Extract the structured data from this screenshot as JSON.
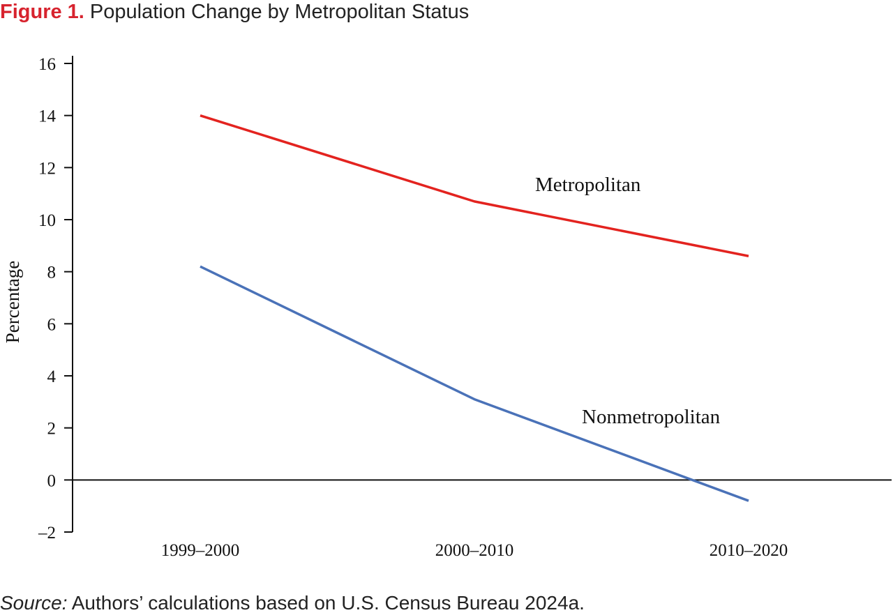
{
  "figure": {
    "label": "Figure 1.",
    "title": "Population Change by Metropolitan Status",
    "label_color": "#d7232e"
  },
  "source": {
    "label": "Source:",
    "text": " Authors’ calculations based on U.S. Census Bureau 2024a."
  },
  "chart_data": {
    "type": "line",
    "categories": [
      "1999–2000",
      "2000–2010",
      "2010–2020"
    ],
    "series": [
      {
        "name": "Metropolitan",
        "values": [
          14.0,
          10.7,
          8.6
        ],
        "color": "#e3231f"
      },
      {
        "name": "Nonmetropolitan",
        "values": [
          8.2,
          3.1,
          -0.8
        ],
        "color": "#4a72b8"
      }
    ],
    "ylabel": "Percentage",
    "xlabel": "",
    "ylim": [
      -2,
      16
    ],
    "yticks": [
      -2,
      0,
      2,
      4,
      6,
      8,
      10,
      12,
      14,
      16
    ],
    "ytick_labels": [
      "–2",
      "0",
      "2",
      "4",
      "6",
      "8",
      "10",
      "12",
      "14",
      "16"
    ],
    "zero_line": true,
    "grid": false,
    "legend": "inline labels near lines"
  }
}
